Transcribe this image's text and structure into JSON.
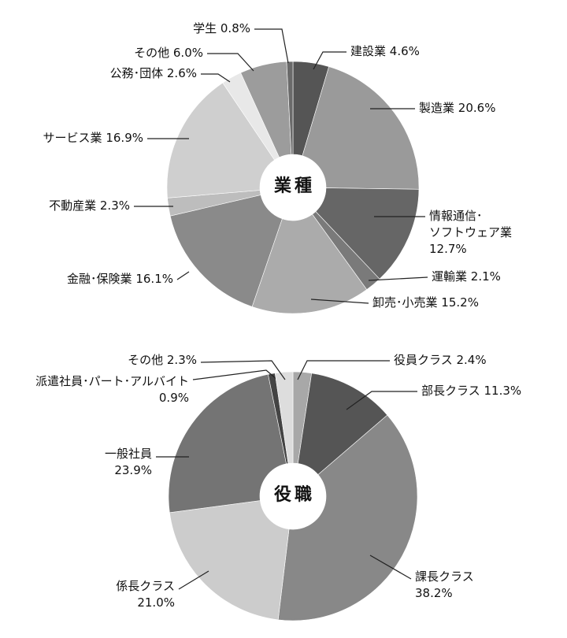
{
  "chart_data": [
    {
      "type": "pie",
      "title": "業種",
      "categories": [
        "建設業",
        "製造業",
        "情報通信･\nソフトウェア業",
        "運輸業",
        "卸売･小売業",
        "金融･保険業",
        "不動産業",
        "サービス業",
        "公務･団体",
        "その他",
        "学生"
      ],
      "values": [
        4.6,
        20.6,
        12.7,
        2.1,
        15.2,
        16.1,
        2.3,
        16.9,
        2.6,
        6.0,
        0.8
      ],
      "value_labels": [
        "4.6%",
        "20.6%",
        "12.7%",
        "2.1%",
        "15.2%",
        "16.1%",
        "2.3%",
        "16.9%",
        "2.6%",
        "6.0%",
        "0.8%"
      ],
      "colors": [
        "#555555",
        "#9a9a9a",
        "#666666",
        "#7a7a7a",
        "#ababab",
        "#8a8a8a",
        "#bdbdbd",
        "#cfcfcf",
        "#e8e8e8",
        "#9c9c9c",
        "#6a6a6a"
      ]
    },
    {
      "type": "pie",
      "title": "役職",
      "categories": [
        "役員クラス",
        "部長クラス",
        "課長クラス",
        "係長クラス",
        "一般社員",
        "派遣社員･パート･アルバイト",
        "その他"
      ],
      "values": [
        2.4,
        11.3,
        38.2,
        21.0,
        23.9,
        0.9,
        2.3
      ],
      "value_labels": [
        "2.4%",
        "11.3%",
        "38.2%",
        "21.0%",
        "23.9%",
        "0.9%",
        "2.3%"
      ],
      "colors": [
        "#a8a8a8",
        "#555555",
        "#888888",
        "#cccccc",
        "#747474",
        "#444444",
        "#dddddd"
      ]
    }
  ]
}
